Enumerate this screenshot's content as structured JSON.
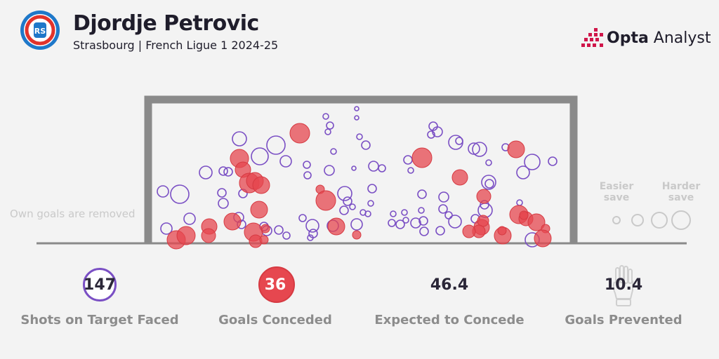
{
  "header": {
    "title": "Djordje Petrovic",
    "subtitle": "Strasbourg | French Ligue 1 2024-25",
    "brand_bold": "Opta",
    "brand_rest": " Analyst"
  },
  "note": "Own goals are removed",
  "legend": {
    "easier_line1": "Easier",
    "easier_line2": "save",
    "harder_line1": "Harder",
    "harder_line2": "save"
  },
  "stats": [
    {
      "value": "147",
      "label": "Shots on Target Faced",
      "marker": "ring"
    },
    {
      "value": "36",
      "label": "Goals Conceded",
      "marker": "filled"
    },
    {
      "value": "46.4",
      "label": "Expected to Concede",
      "marker": "none"
    },
    {
      "value": "10.4",
      "label": "Goals Prevented",
      "marker": "glove-icon"
    }
  ],
  "colors": {
    "save": "#7a4fc4",
    "goal_fill": "#e6474f",
    "goal_frame": "#8a8a8a",
    "text_dark": "#1f1d2b",
    "text_muted": "#8c8c8c",
    "brand_accent": "#d0164a",
    "background": "#f3f3f3"
  },
  "chart_data": {
    "type": "scatter",
    "title": "Djordje Petrovic",
    "size_encoding": "difficulty of save (Easier save → Harder save)",
    "series": [
      {
        "name": "Goals Conceded",
        "count": 36
      },
      {
        "name": "Shots on Target Faced",
        "count": 147
      }
    ]
  }
}
